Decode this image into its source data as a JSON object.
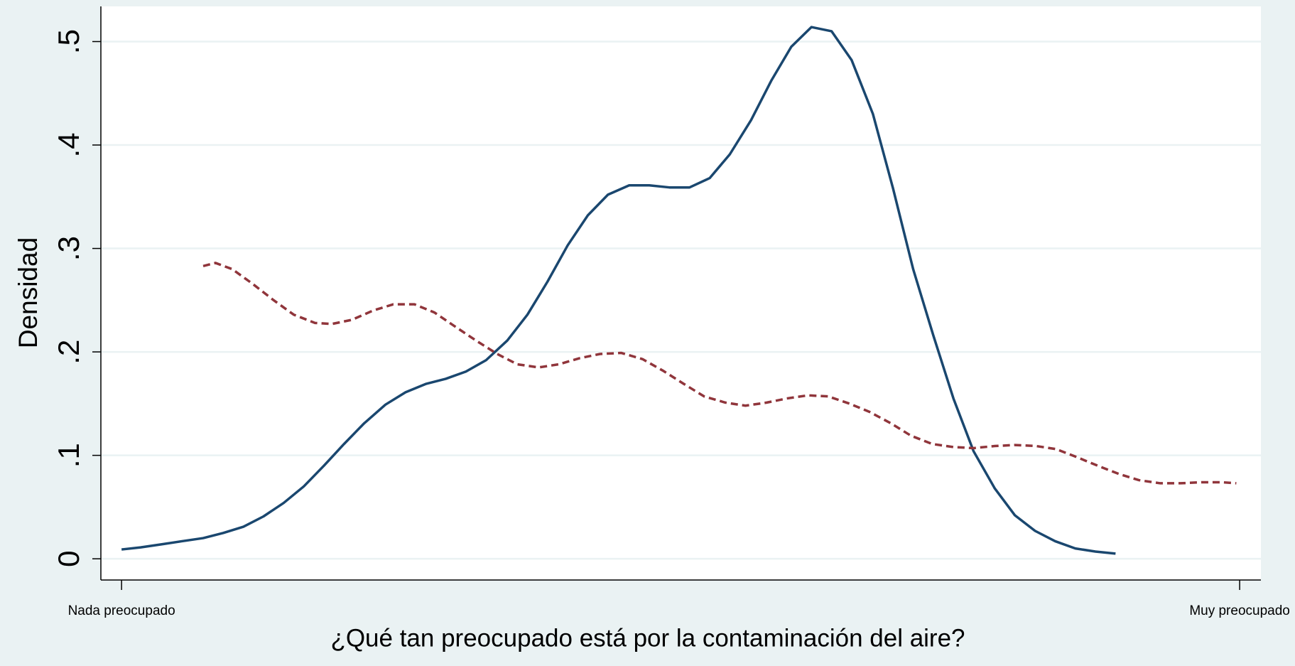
{
  "chart_data": {
    "type": "line",
    "ylabel": "Densidad",
    "xlabel": "¿Qué tan preocupado está por la contaminación del aire?",
    "xlim": [
      -0.185,
      10.19
    ],
    "xticks": [
      {
        "value": 0,
        "label": "Nada preocupado"
      },
      {
        "value": 10,
        "label": "Muy preocupado"
      }
    ],
    "ylim": [
      -0.0205,
      0.534
    ],
    "yticks": [
      0,
      {
        "value": 0.1,
        "label": ".1"
      },
      {
        "value": 0.2,
        "label": ".2"
      },
      {
        "value": 0.3,
        "label": ".3"
      },
      {
        "value": 0.4,
        "label": ".4"
      },
      {
        "value": 0.5,
        "label": ".5"
      }
    ],
    "grid": true,
    "series": [
      {
        "color": "#1a476f",
        "dash": false,
        "x": [
          0,
          0.17,
          0.36,
          0.54,
          0.73,
          0.91,
          1.09,
          1.27,
          1.45,
          1.63,
          1.81,
          1.99,
          2.17,
          2.36,
          2.54,
          2.72,
          2.9,
          3.08,
          3.26,
          3.45,
          3.63,
          3.81,
          3.99,
          4.17,
          4.35,
          4.54,
          4.72,
          4.9,
          5.08,
          5.26,
          5.44,
          5.63,
          5.81,
          5.99,
          6.17,
          6.35,
          6.53,
          6.72,
          6.9,
          7.08,
          7.26,
          7.44,
          7.62,
          7.81,
          7.99,
          8.17,
          8.35,
          8.53,
          8.71,
          8.89
        ],
        "values": [
          0.009,
          0.011,
          0.014,
          0.017,
          0.02,
          0.025,
          0.031,
          0.041,
          0.054,
          0.07,
          0.09,
          0.111,
          0.131,
          0.149,
          0.161,
          0.169,
          0.174,
          0.181,
          0.192,
          0.211,
          0.236,
          0.268,
          0.303,
          0.332,
          0.352,
          0.361,
          0.361,
          0.359,
          0.359,
          0.368,
          0.391,
          0.424,
          0.462,
          0.495,
          0.514,
          0.51,
          0.482,
          0.43,
          0.358,
          0.28,
          0.216,
          0.155,
          0.104,
          0.068,
          0.042,
          0.027,
          0.017,
          0.01,
          0.007,
          0.005
        ]
      },
      {
        "color": "#90353b",
        "dash": true,
        "x": [
          0.73,
          0.84,
          0.99,
          1.17,
          1.36,
          1.54,
          1.73,
          1.88,
          2.06,
          2.25,
          2.43,
          2.62,
          2.8,
          2.99,
          3.17,
          3.36,
          3.54,
          3.73,
          3.91,
          4.1,
          4.28,
          4.47,
          4.66,
          4.84,
          5.03,
          5.21,
          5.4,
          5.58,
          5.77,
          5.95,
          6.14,
          6.32,
          6.51,
          6.69,
          6.88,
          7.06,
          7.25,
          7.44,
          7.62,
          7.81,
          7.99,
          8.18,
          8.36,
          8.55,
          8.73,
          8.92,
          9.1,
          9.29,
          9.47,
          9.66,
          9.84,
          9.97
        ],
        "values": [
          0.283,
          0.286,
          0.28,
          0.266,
          0.25,
          0.236,
          0.228,
          0.227,
          0.231,
          0.24,
          0.246,
          0.246,
          0.238,
          0.224,
          0.211,
          0.198,
          0.188,
          0.185,
          0.188,
          0.194,
          0.198,
          0.199,
          0.193,
          0.182,
          0.169,
          0.157,
          0.151,
          0.148,
          0.151,
          0.155,
          0.158,
          0.157,
          0.15,
          0.142,
          0.131,
          0.119,
          0.111,
          0.108,
          0.107,
          0.109,
          0.11,
          0.109,
          0.106,
          0.098,
          0.09,
          0.082,
          0.076,
          0.073,
          0.073,
          0.074,
          0.074,
          0.073
        ]
      }
    ]
  }
}
